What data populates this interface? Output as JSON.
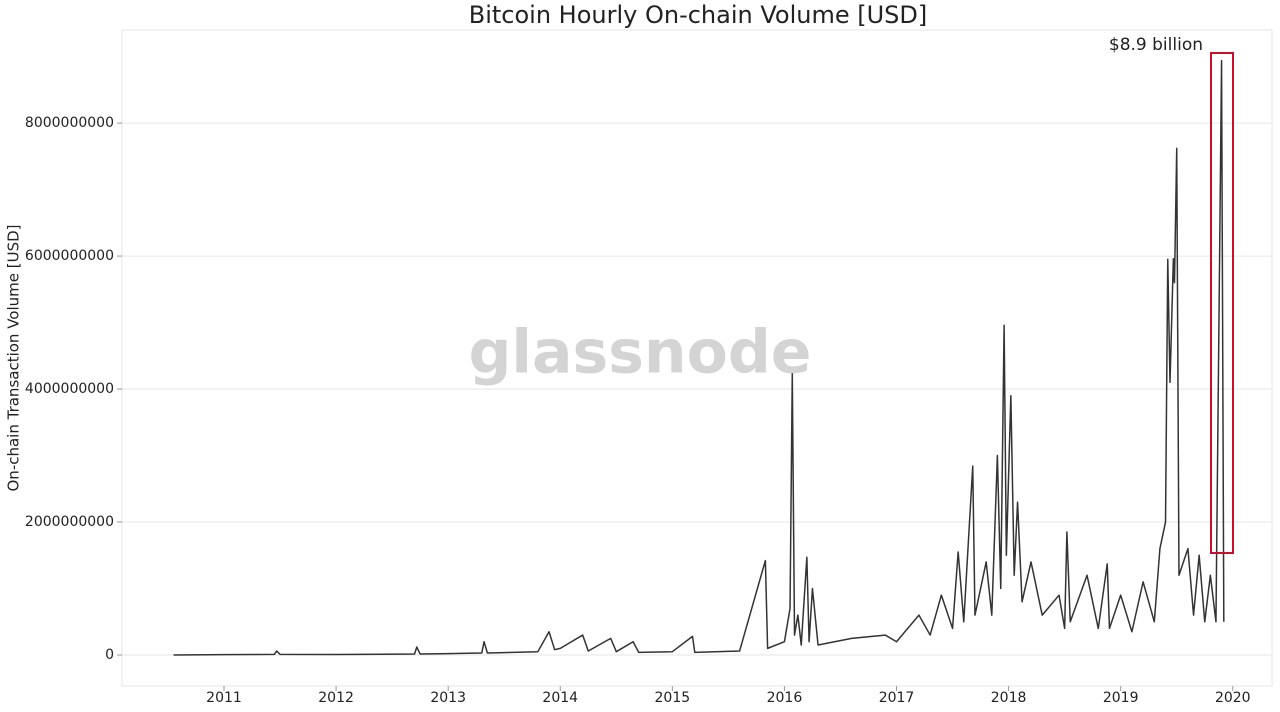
{
  "chart_data": {
    "type": "line",
    "title": "Bitcoin Hourly On-chain Volume [USD]",
    "y_label": "On-chain Transaction Volume [USD]",
    "watermark": "glassnode",
    "annotation": "$8.9 billion",
    "grid": true,
    "xlim": [
      2010.09,
      2020.35
    ],
    "xticks": [
      2011,
      2012,
      2013,
      2014,
      2015,
      2016,
      2017,
      2018,
      2019,
      2020
    ],
    "ylim": [
      -466000000,
      9400000000
    ],
    "yticks": [
      0,
      2000000000,
      4000000000,
      6000000000,
      8000000000
    ],
    "x": [
      2010.55,
      2011.0,
      2011.45,
      2011.47,
      2011.5,
      2012.0,
      2012.7,
      2012.72,
      2012.75,
      2013.0,
      2013.3,
      2013.32,
      2013.35,
      2013.8,
      2013.9,
      2013.95,
      2014.0,
      2014.2,
      2014.25,
      2014.45,
      2014.5,
      2014.65,
      2014.7,
      2015.0,
      2015.18,
      2015.2,
      2015.6,
      2015.83,
      2015.85,
      2016.0,
      2016.05,
      2016.07,
      2016.09,
      2016.12,
      2016.15,
      2016.2,
      2016.22,
      2016.25,
      2016.3,
      2016.6,
      2016.9,
      2017.0,
      2017.2,
      2017.3,
      2017.4,
      2017.5,
      2017.55,
      2017.6,
      2017.68,
      2017.7,
      2017.8,
      2017.85,
      2017.9,
      2017.93,
      2017.96,
      2017.98,
      2018.02,
      2018.05,
      2018.08,
      2018.12,
      2018.2,
      2018.3,
      2018.45,
      2018.5,
      2018.52,
      2018.55,
      2018.7,
      2018.8,
      2018.88,
      2018.9,
      2019.0,
      2019.1,
      2019.2,
      2019.3,
      2019.35,
      2019.4,
      2019.42,
      2019.44,
      2019.47,
      2019.48,
      2019.5,
      2019.52,
      2019.6,
      2019.65,
      2019.7,
      2019.75,
      2019.8,
      2019.85,
      2019.9,
      2019.92
    ],
    "series": [
      {
        "name": "Volume",
        "color": "#333333",
        "values": [
          0,
          5000000,
          10000000,
          60000000,
          10000000,
          8000000,
          15000000,
          120000000,
          15000000,
          20000000,
          30000000,
          200000000,
          30000000,
          50000000,
          350000000,
          80000000,
          100000000,
          300000000,
          60000000,
          250000000,
          50000000,
          200000000,
          40000000,
          50000000,
          280000000,
          40000000,
          60000000,
          1420000000,
          100000000,
          200000000,
          700000000,
          4230000000,
          300000000,
          600000000,
          150000000,
          1470000000,
          200000000,
          1000000000,
          150000000,
          250000000,
          300000000,
          200000000,
          600000000,
          300000000,
          900000000,
          400000000,
          1550000000,
          500000000,
          2840000000,
          600000000,
          1400000000,
          600000000,
          3000000000,
          1000000000,
          4960000000,
          1500000000,
          3900000000,
          1200000000,
          2300000000,
          800000000,
          1400000000,
          600000000,
          900000000,
          400000000,
          1850000000,
          500000000,
          1200000000,
          400000000,
          1370000000,
          400000000,
          900000000,
          350000000,
          1100000000,
          500000000,
          1600000000,
          2000000000,
          5950000000,
          4100000000,
          5960000000,
          5600000000,
          7620000000,
          1200000000,
          1600000000,
          600000000,
          1500000000,
          500000000,
          1200000000,
          500000000,
          8940000000,
          500000000
        ]
      }
    ]
  }
}
